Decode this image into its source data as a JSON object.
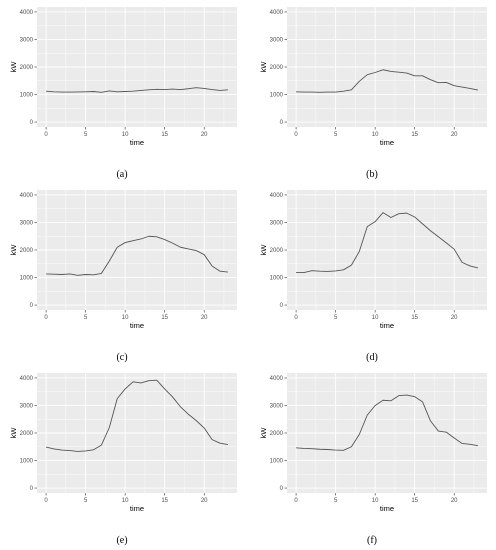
{
  "chart_data": [
    {
      "type": "line",
      "panel": "a",
      "caption": "(a)",
      "xlabel": "time",
      "ylabel": "kW",
      "xlim": [
        0,
        23
      ],
      "ylim": [
        0,
        4000
      ],
      "x_ticks": [
        "0",
        "5",
        "10",
        "15",
        "20"
      ],
      "y_ticks": [
        "0",
        "1000",
        "2000",
        "3000",
        "4000"
      ],
      "grid": true,
      "x": [
        0,
        1,
        2,
        3,
        4,
        5,
        6,
        7,
        8,
        9,
        10,
        11,
        12,
        13,
        14,
        15,
        16,
        17,
        18,
        19,
        20,
        21,
        22,
        23
      ],
      "values": [
        1120,
        1100,
        1090,
        1090,
        1095,
        1100,
        1110,
        1080,
        1130,
        1100,
        1110,
        1120,
        1150,
        1170,
        1190,
        1180,
        1200,
        1180,
        1210,
        1250,
        1220,
        1180,
        1150,
        1170
      ]
    },
    {
      "type": "line",
      "panel": "b",
      "caption": "(b)",
      "xlabel": "time",
      "ylabel": "kW",
      "xlim": [
        0,
        23
      ],
      "ylim": [
        0,
        4000
      ],
      "x_ticks": [
        "0",
        "5",
        "10",
        "15",
        "20"
      ],
      "y_ticks": [
        "0",
        "1000",
        "2000",
        "3000",
        "4000"
      ],
      "grid": true,
      "x": [
        0,
        1,
        2,
        3,
        4,
        5,
        6,
        7,
        8,
        9,
        10,
        11,
        12,
        13,
        14,
        15,
        16,
        17,
        18,
        19,
        20,
        21,
        22,
        23
      ],
      "values": [
        1100,
        1090,
        1090,
        1080,
        1090,
        1090,
        1120,
        1170,
        1480,
        1720,
        1800,
        1900,
        1840,
        1810,
        1780,
        1680,
        1680,
        1540,
        1430,
        1440,
        1320,
        1270,
        1220,
        1160
      ]
    },
    {
      "type": "line",
      "panel": "c",
      "caption": "(c)",
      "xlabel": "time",
      "ylabel": "kW",
      "xlim": [
        0,
        23
      ],
      "ylim": [
        0,
        4000
      ],
      "x_ticks": [
        "0",
        "5",
        "10",
        "15",
        "20"
      ],
      "y_ticks": [
        "0",
        "1000",
        "2000",
        "3000",
        "4000"
      ],
      "grid": true,
      "x": [
        0,
        1,
        2,
        3,
        4,
        5,
        6,
        7,
        8,
        9,
        10,
        11,
        12,
        13,
        14,
        15,
        16,
        17,
        18,
        19,
        20,
        21,
        22,
        23
      ],
      "values": [
        1130,
        1120,
        1110,
        1130,
        1080,
        1110,
        1100,
        1150,
        1600,
        2100,
        2270,
        2340,
        2400,
        2500,
        2480,
        2380,
        2250,
        2100,
        2040,
        1980,
        1830,
        1420,
        1230,
        1200
      ]
    },
    {
      "type": "line",
      "panel": "d",
      "caption": "(d)",
      "xlabel": "time",
      "ylabel": "kW",
      "xlim": [
        0,
        23
      ],
      "ylim": [
        0,
        4000
      ],
      "x_ticks": [
        "0",
        "5",
        "10",
        "15",
        "20"
      ],
      "y_ticks": [
        "0",
        "1000",
        "2000",
        "3000",
        "4000"
      ],
      "grid": true,
      "x": [
        0,
        1,
        2,
        3,
        4,
        5,
        6,
        7,
        8,
        9,
        10,
        11,
        12,
        13,
        14,
        15,
        16,
        17,
        18,
        19,
        20,
        21,
        22,
        23
      ],
      "values": [
        1180,
        1180,
        1250,
        1230,
        1220,
        1240,
        1280,
        1450,
        1950,
        2850,
        3030,
        3360,
        3180,
        3320,
        3340,
        3200,
        2950,
        2700,
        2480,
        2260,
        2030,
        1550,
        1420,
        1350
      ]
    },
    {
      "type": "line",
      "panel": "e",
      "caption": "(e)",
      "xlabel": "time",
      "ylabel": "kW",
      "xlim": [
        0,
        23
      ],
      "ylim": [
        0,
        4000
      ],
      "x_ticks": [
        "0",
        "5",
        "10",
        "15",
        "20"
      ],
      "y_ticks": [
        "0",
        "1000",
        "2000",
        "3000",
        "4000"
      ],
      "grid": true,
      "x": [
        0,
        1,
        2,
        3,
        4,
        5,
        6,
        7,
        8,
        9,
        10,
        11,
        12,
        13,
        14,
        15,
        16,
        17,
        18,
        19,
        20,
        21,
        22,
        23
      ],
      "values": [
        1490,
        1420,
        1380,
        1360,
        1330,
        1350,
        1390,
        1560,
        2200,
        3250,
        3600,
        3860,
        3820,
        3900,
        3920,
        3600,
        3310,
        2950,
        2680,
        2450,
        2180,
        1760,
        1630,
        1580
      ]
    },
    {
      "type": "line",
      "panel": "f",
      "caption": "(f)",
      "xlabel": "time",
      "ylabel": "kW",
      "xlim": [
        0,
        23
      ],
      "ylim": [
        0,
        4000
      ],
      "x_ticks": [
        "0",
        "5",
        "10",
        "15",
        "20"
      ],
      "y_ticks": [
        "0",
        "1000",
        "2000",
        "3000",
        "4000"
      ],
      "grid": true,
      "x": [
        0,
        1,
        2,
        3,
        4,
        5,
        6,
        7,
        8,
        9,
        10,
        11,
        12,
        13,
        14,
        15,
        16,
        17,
        18,
        19,
        20,
        21,
        22,
        23
      ],
      "values": [
        1460,
        1440,
        1430,
        1410,
        1400,
        1380,
        1370,
        1500,
        1950,
        2650,
        3000,
        3190,
        3170,
        3360,
        3380,
        3320,
        3130,
        2440,
        2070,
        2030,
        1820,
        1620,
        1590,
        1540
      ]
    }
  ],
  "style": {
    "panel_bg": "#ebebeb",
    "grid_color": "#ffffff",
    "line_color": "#555555"
  }
}
